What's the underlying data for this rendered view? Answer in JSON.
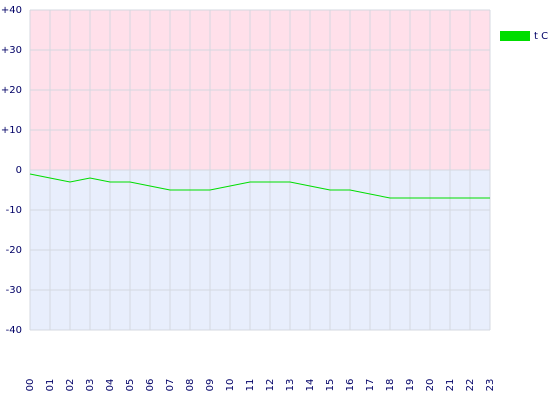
{
  "chart_data": {
    "type": "line",
    "categories": [
      "00",
      "01",
      "02",
      "03",
      "04",
      "05",
      "06",
      "07",
      "08",
      "09",
      "10",
      "11",
      "12",
      "13",
      "14",
      "15",
      "16",
      "17",
      "18",
      "19",
      "20",
      "21",
      "22",
      "23"
    ],
    "series": [
      {
        "name": "t C",
        "color": "#00dd00",
        "values": [
          -1,
          -2,
          -3,
          -2,
          -3,
          -3,
          -4,
          -5,
          -5,
          -5,
          -4,
          -3,
          -3,
          -3,
          -4,
          -5,
          -5,
          -6,
          -7,
          -7,
          -7,
          -7,
          -7,
          -7
        ]
      }
    ],
    "ylim": [
      -40,
      40
    ],
    "yticks": [
      {
        "value": 40,
        "label": "+40"
      },
      {
        "value": 30,
        "label": "+30"
      },
      {
        "value": 20,
        "label": "+20"
      },
      {
        "value": 10,
        "label": "+10"
      },
      0,
      -10,
      -20,
      -30,
      -40
    ],
    "grid": true,
    "legend": "top-right"
  }
}
